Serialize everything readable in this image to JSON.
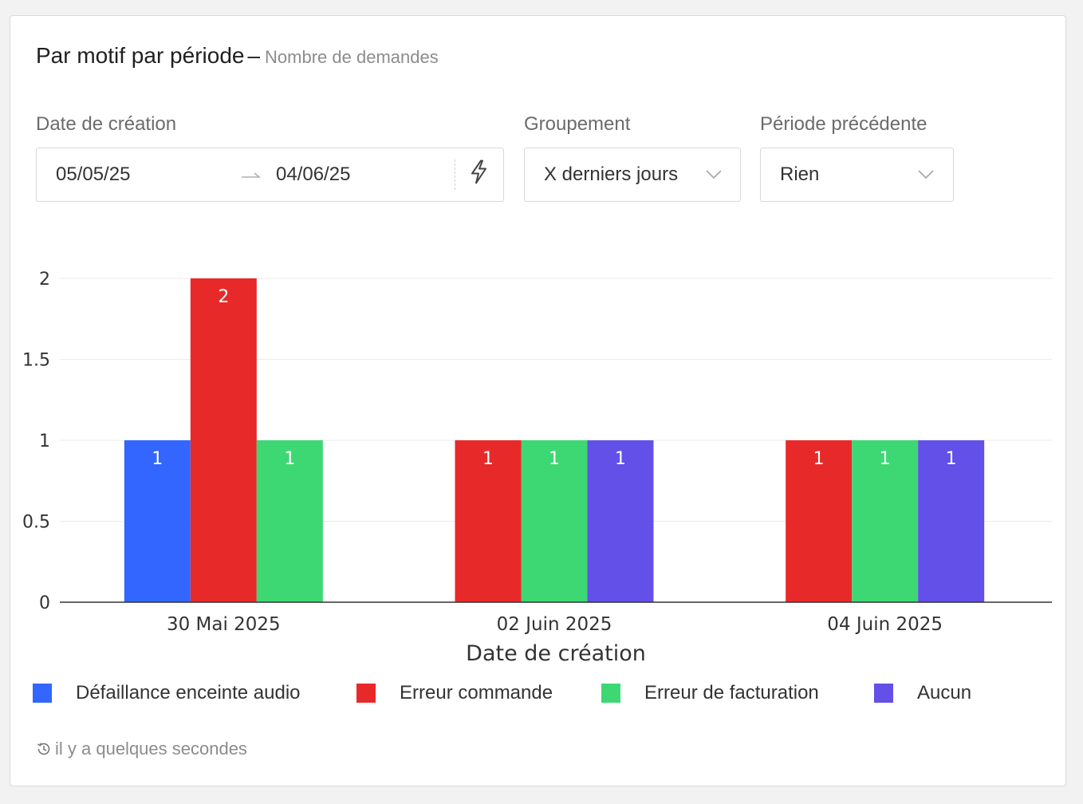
{
  "header": {
    "title": "Par motif par période",
    "separator": "–",
    "subtitle": "Nombre de demandes"
  },
  "filters": {
    "date": {
      "label": "Date de création",
      "start": "05/05/25",
      "end": "04/06/25",
      "arrow": "→",
      "icon": "lightning-icon"
    },
    "grouping": {
      "label": "Groupement",
      "value": "X derniers jours",
      "icon": "chevron-down-icon"
    },
    "previous": {
      "label": "Période précédente",
      "value": "Rien",
      "icon": "chevron-down-icon"
    }
  },
  "chart_data": {
    "type": "bar",
    "categories": [
      "30 Mai 2025",
      "02 Juin 2025",
      "04 Juin 2025"
    ],
    "series": [
      {
        "name": "Défaillance enceinte audio",
        "color": "#3366ff",
        "values": [
          1,
          null,
          null
        ]
      },
      {
        "name": "Erreur commande",
        "color": "#e8292a",
        "values": [
          2,
          1,
          1
        ]
      },
      {
        "name": "Erreur de facturation",
        "color": "#3dd874",
        "values": [
          1,
          1,
          1
        ]
      },
      {
        "name": "Aucun",
        "color": "#6250e8",
        "values": [
          null,
          1,
          1
        ]
      }
    ],
    "xlabel": "Date de création",
    "ylabel": "",
    "ylim": [
      0,
      2
    ],
    "yticks": [
      "0",
      "0.5",
      "1",
      "1.5",
      "2"
    ],
    "ytick_values": [
      0,
      0.5,
      1,
      1.5,
      2
    ],
    "grid": true,
    "legend": "bottom"
  },
  "footer": {
    "icon": "history-icon",
    "text": "il y a quelques secondes"
  }
}
